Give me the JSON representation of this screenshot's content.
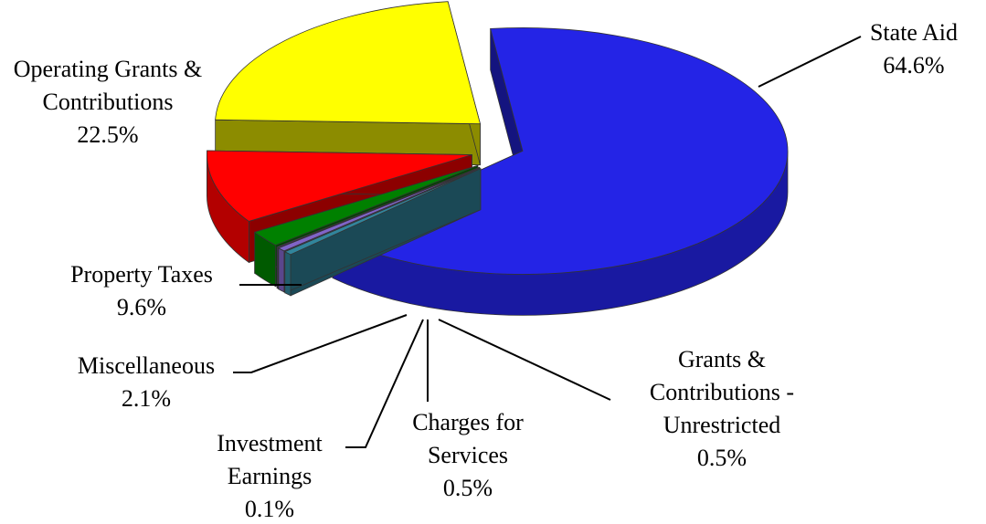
{
  "chart_data": {
    "type": "pie",
    "categories": [
      "State Aid",
      "Grants & Contributions - Unrestricted",
      "Charges for Services",
      "Investment Earnings",
      "Miscellaneous",
      "Property Taxes",
      "Operating Grants & Contributions"
    ],
    "values": [
      64.6,
      0.5,
      0.5,
      0.1,
      2.1,
      9.6,
      22.5
    ],
    "value_labels": [
      "64.6%",
      "0.5%",
      "0.5%",
      "0.1%",
      "2.1%",
      "9.6%",
      "22.5%"
    ],
    "colors": [
      "#2424e6",
      "#31859c",
      "#8064c8",
      "#7030a0",
      "#008000",
      "#ff0000",
      "#ffff00"
    ]
  }
}
